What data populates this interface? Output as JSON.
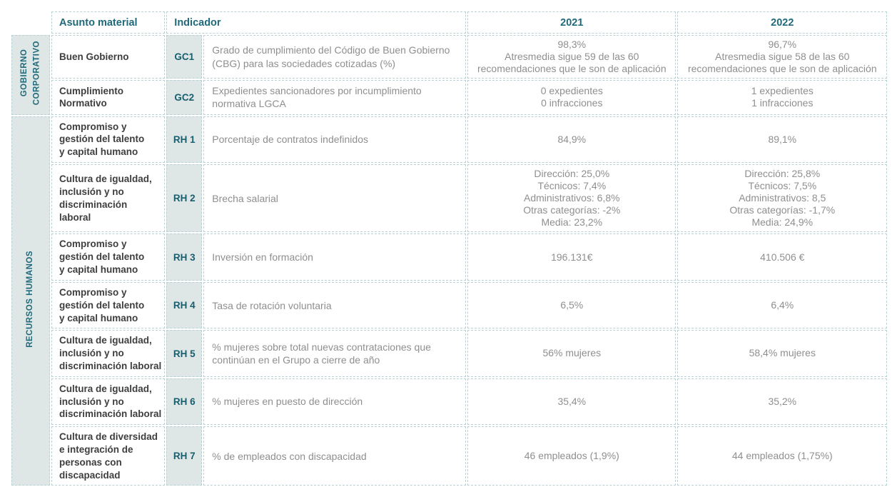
{
  "colors": {
    "teal": "#20697a",
    "teal_dark": "#175e6f",
    "cell_bg": "#dee7e6",
    "border": "#b9d0d4",
    "text_dark": "#3e3e3e",
    "text_gray": "#8f8f8f"
  },
  "table": {
    "headers": {
      "asunto": "Asunto material",
      "indicador": "Indicador",
      "y2021": "2021",
      "y2022": "2022"
    },
    "sections": [
      {
        "label": "GOBIERNO CORPORATIVO",
        "label_lines": [
          "GOBIERNO",
          "CORPORATIVO"
        ],
        "rows": [
          {
            "asunto": "Buen Gobierno",
            "asunto_lines": [
              "Buen Gobierno"
            ],
            "code": "GC1",
            "indicator": "Grado de cumplimiento del Código de Buen Gobierno (CBG) para las sociedades cotizadas (%)",
            "indicator_lines": [
              "Grado de cumplimiento del Código de Buen Gobierno",
              "(CBG) para las sociedades cotizadas (%)"
            ],
            "v2021": [
              "98,3%",
              "Atresmedia sigue 59 de las 60",
              "recomendaciones que le son de aplicación"
            ],
            "v2022": [
              "96,7%",
              "Atresmedia sigue 58 de las 60",
              "recomendaciones que le son de aplicación"
            ]
          },
          {
            "asunto": "Cumplimiento Normativo",
            "asunto_lines": [
              "Cumplimiento",
              "Normativo"
            ],
            "code": "GC2",
            "indicator": "Expedientes sancionadores por incumplimiento normativa LGCA",
            "indicator_lines": [
              "Expedientes sancionadores por incumplimiento",
              "normativa LGCA"
            ],
            "v2021": [
              "0 expedientes",
              "0 infracciones"
            ],
            "v2022": [
              "1 expedientes",
              "1 infracciones"
            ]
          }
        ]
      },
      {
        "label": "RECURSOS HUMANOS",
        "label_lines": [
          "RECURSOS HUMANOS"
        ],
        "rows": [
          {
            "asunto": "Compromiso y gestión del talento y capital humano",
            "asunto_lines": [
              "Compromiso y",
              "gestión del talento",
              "y capital humano"
            ],
            "code": "RH 1",
            "indicator": "Porcentaje de contratos indefinidos",
            "indicator_lines": [
              "Porcentaje de contratos indefinidos"
            ],
            "v2021": [
              "84,9%"
            ],
            "v2022": [
              "89,1%"
            ]
          },
          {
            "asunto": "Cultura de igualdad, inclusión y no discriminación laboral",
            "asunto_lines": [
              "Cultura de igualdad,",
              "inclusión y no",
              "discriminación",
              "laboral"
            ],
            "code": "RH 2",
            "indicator": "Brecha salarial",
            "indicator_lines": [
              "Brecha salarial"
            ],
            "v2021": [
              "Dirección: 25,0%",
              "Técnicos: 7,4%",
              "Administrativos: 6,8%",
              "Otras categorías: -2%",
              "Media: 23,2%"
            ],
            "v2022": [
              "Dirección: 25,8%",
              "Técnicos: 7,5%",
              "Administrativos: 8,5",
              "Otras categorías: -1,7%",
              "Media: 24,9%"
            ]
          },
          {
            "asunto": "Compromiso y gestión del talento y capital humano",
            "asunto_lines": [
              "Compromiso y",
              "gestión del talento",
              "y capital humano"
            ],
            "code": "RH 3",
            "indicator": "Inversión en formación",
            "indicator_lines": [
              "Inversión en formación"
            ],
            "v2021": [
              "196.131€"
            ],
            "v2022": [
              "410.506 €"
            ]
          },
          {
            "asunto": "Compromiso y gestión del talento y capital humano",
            "asunto_lines": [
              "Compromiso y",
              "gestión del talento",
              "y capital humano"
            ],
            "code": "RH 4",
            "indicator": "Tasa de rotación voluntaria",
            "indicator_lines": [
              "Tasa de rotación voluntaria"
            ],
            "v2021": [
              "6,5%"
            ],
            "v2022": [
              "6,4%"
            ]
          },
          {
            "asunto": "Cultura de igualdad, inclusión y no discriminación laboral",
            "asunto_lines": [
              "Cultura de igualdad,",
              "inclusión y no",
              "discriminación laboral"
            ],
            "code": "RH 5",
            "indicator": "% mujeres sobre total nuevas contrataciones que continúan en el Grupo a cierre de año",
            "indicator_lines": [
              "% mujeres sobre total nuevas contrataciones que",
              "continúan en el Grupo a cierre de año"
            ],
            "v2021": [
              "56% mujeres"
            ],
            "v2022": [
              "58,4% mujeres"
            ]
          },
          {
            "asunto": "Cultura de igualdad, inclusión y no discriminación laboral",
            "asunto_lines": [
              "Cultura de igualdad,",
              "inclusión y no",
              "discriminación laboral"
            ],
            "code": "RH 6",
            "indicator": "% mujeres en puesto de dirección",
            "indicator_lines": [
              "% mujeres en puesto de dirección"
            ],
            "v2021": [
              "35,4%"
            ],
            "v2022": [
              "35,2%"
            ]
          },
          {
            "asunto": "Cultura de diversidad e integración de personas con discapacidad",
            "asunto_lines": [
              "Cultura de diversidad",
              "e integración de",
              "personas con",
              "discapacidad"
            ],
            "code": "RH 7",
            "indicator": "% de empleados con discapacidad",
            "indicator_lines": [
              "% de empleados con discapacidad"
            ],
            "v2021": [
              "46 empleados (1,9%)"
            ],
            "v2022": [
              "44 empleados (1,75%)"
            ]
          }
        ]
      }
    ]
  }
}
